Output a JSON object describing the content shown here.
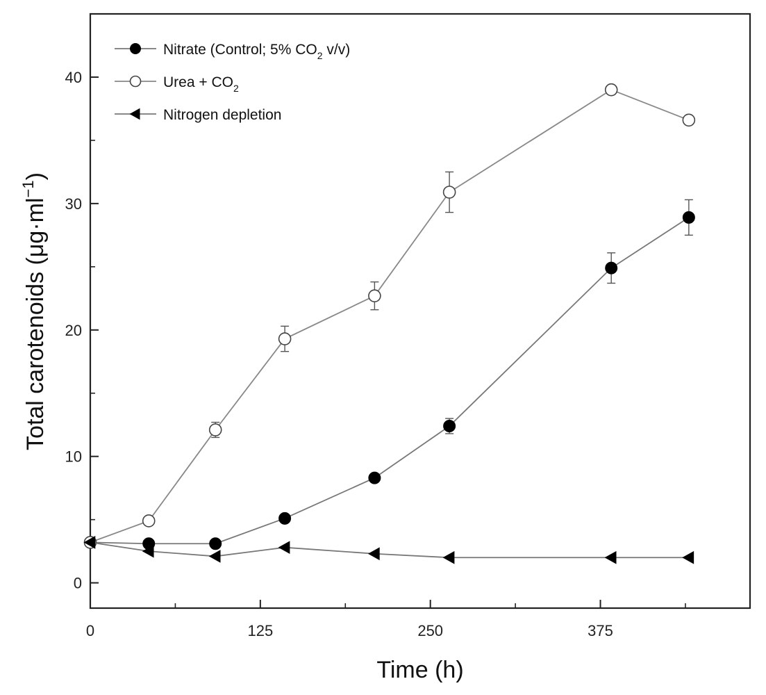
{
  "chart_data": {
    "type": "line",
    "xlabel": "Time (h)",
    "ylabel": {
      "prefix": "Total carotenoids (μg·ml",
      "superscript": "−1",
      "suffix": ")"
    },
    "xlim": [
      0,
      485
    ],
    "ylim": [
      -2,
      45
    ],
    "x_ticks": [
      0,
      125,
      250,
      375
    ],
    "x_tick_labels": [
      "0",
      "125",
      "250",
      "375"
    ],
    "x_minor_ticks": [
      62.5,
      187.5,
      312.5,
      437.5
    ],
    "y_ticks": [
      0,
      10,
      20,
      30,
      40
    ],
    "y_tick_labels": [
      "0",
      "10",
      "20",
      "30",
      "40"
    ],
    "y_minor_ticks": [
      5,
      15,
      25,
      35
    ],
    "legend_position": "top-left",
    "grid": false,
    "series": [
      {
        "key": "nitrate",
        "legend": {
          "prefix": "Nitrate (Control; 5% CO",
          "subscript": "2",
          "suffix": " v/v)"
        },
        "marker": "filled-circle",
        "color": "#000000",
        "line_color": "#777777",
        "x": [
          0,
          43,
          92,
          143,
          209,
          264,
          383,
          440
        ],
        "y": [
          3.2,
          3.1,
          3.1,
          5.1,
          8.3,
          12.4,
          24.9,
          28.9
        ],
        "error": [
          0,
          0,
          0,
          0.2,
          0.3,
          0.6,
          1.2,
          1.4
        ]
      },
      {
        "key": "urea",
        "legend": {
          "prefix": "Urea + CO",
          "subscript": "2",
          "suffix": ""
        },
        "marker": "open-circle",
        "color": "#444444",
        "line_color": "#888888",
        "x": [
          0,
          43,
          92,
          143,
          209,
          264,
          383,
          440
        ],
        "y": [
          3.2,
          4.9,
          12.1,
          19.3,
          22.7,
          30.9,
          39.0,
          36.6
        ],
        "error": [
          0,
          0.3,
          0.6,
          1.0,
          1.1,
          1.6,
          0,
          0
        ]
      },
      {
        "key": "nitrogen",
        "legend": {
          "prefix": "Nitrogen depletion",
          "subscript": "",
          "suffix": ""
        },
        "marker": "left-triangle",
        "color": "#000000",
        "line_color": "#777777",
        "x": [
          0,
          43,
          92,
          143,
          209,
          264,
          383,
          440
        ],
        "y": [
          3.2,
          2.5,
          2.1,
          2.8,
          2.3,
          2.0,
          2.0,
          2.0
        ],
        "error": [
          0,
          0,
          0,
          0,
          0,
          0,
          0,
          0
        ]
      }
    ]
  }
}
